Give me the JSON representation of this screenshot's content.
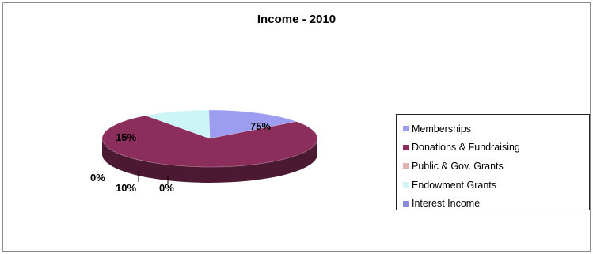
{
  "chart_data": {
    "type": "pie",
    "title": "Income - 2010",
    "categories": [
      "Memberships",
      "Donations & Fundraising",
      "Public & Gov. Grants",
      "Endowment  Grants",
      "Interest Income"
    ],
    "values": [
      15,
      75,
      0,
      10,
      0
    ],
    "data_labels": [
      "15%",
      "75%",
      "0%",
      "10%",
      "0%"
    ],
    "colors": [
      "#9c9cf0",
      "#8b2e5c",
      "#e3b3ad",
      "#ccf6f6",
      "#8a8ae0"
    ],
    "legend": "right",
    "three_d": true
  }
}
